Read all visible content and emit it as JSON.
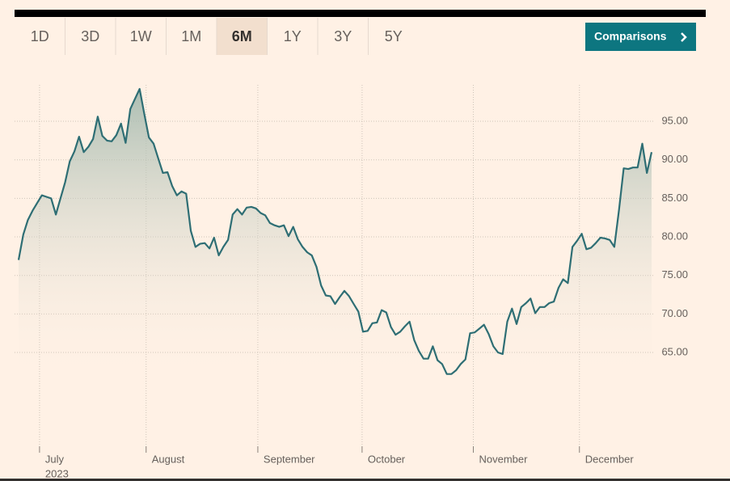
{
  "controls": {
    "ranges": [
      "1D",
      "3D",
      "1W",
      "1M",
      "6M",
      "1Y",
      "3Y",
      "5Y"
    ],
    "selected_range": 4,
    "button": "Comparisons"
  },
  "chart_data": {
    "type": "area",
    "values": [
      77.0,
      80.3,
      82.2,
      83.4,
      84.4,
      85.4,
      85.2,
      85.0,
      82.9,
      85.0,
      87.1,
      89.8,
      91.1,
      93.0,
      91.0,
      91.7,
      92.7,
      95.6,
      93.1,
      92.5,
      92.4,
      93.2,
      94.7,
      92.2,
      96.6,
      97.9,
      99.2,
      96.0,
      92.9,
      92.1,
      90.2,
      88.3,
      88.4,
      86.6,
      85.4,
      85.9,
      85.6,
      80.8,
      78.7,
      79.1,
      79.2,
      78.5,
      79.9,
      77.6,
      78.7,
      79.6,
      82.9,
      83.6,
      82.9,
      83.8,
      83.9,
      83.7,
      83.1,
      82.8,
      81.8,
      81.5,
      81.3,
      81.5,
      80.1,
      81.3,
      79.7,
      78.7,
      78.0,
      77.6,
      76.1,
      73.7,
      72.4,
      72.3,
      71.3,
      72.2,
      73.0,
      72.3,
      71.3,
      70.3,
      67.7,
      67.8,
      68.8,
      68.9,
      70.5,
      70.2,
      68.3,
      67.3,
      67.7,
      68.4,
      69.0,
      66.6,
      65.2,
      64.2,
      64.2,
      65.8,
      64.0,
      63.5,
      62.2,
      62.2,
      62.7,
      63.5,
      64.1,
      67.5,
      67.6,
      68.1,
      68.6,
      67.4,
      65.8,
      65.0,
      64.8,
      69.0,
      70.7,
      68.7,
      70.9,
      71.4,
      72.0,
      70.1,
      70.9,
      70.9,
      71.4,
      71.6,
      73.4,
      74.5,
      74.0,
      78.7,
      79.5,
      80.4,
      78.4,
      78.6,
      79.2,
      79.9,
      79.8,
      79.6,
      78.7,
      83.5,
      88.9,
      88.8,
      89.0,
      89.0,
      92.1,
      88.3,
      91.0
    ],
    "color": "#2e6e74",
    "xlim": [
      0,
      136
    ],
    "xticks": [
      {
        "value": 4.5,
        "label": "July"
      },
      {
        "value": 27.4,
        "label": "August"
      },
      {
        "value": 51.4,
        "label": "September"
      },
      {
        "value": 73.8,
        "label": "October"
      },
      {
        "value": 97.7,
        "label": "November"
      },
      {
        "value": 120.5,
        "label": "December"
      }
    ],
    "year_label": "2023",
    "ylim": [
      52.5,
      100.5
    ],
    "yticks": [
      {
        "value": 65,
        "label": "65.00"
      },
      {
        "value": 70,
        "label": "70.00"
      },
      {
        "value": 75,
        "label": "75.00"
      },
      {
        "value": 80,
        "label": "80.00"
      },
      {
        "value": 85,
        "label": "85.00"
      },
      {
        "value": 90,
        "label": "90.00"
      },
      {
        "value": 95,
        "label": "95.00"
      }
    ],
    "grid": true
  }
}
